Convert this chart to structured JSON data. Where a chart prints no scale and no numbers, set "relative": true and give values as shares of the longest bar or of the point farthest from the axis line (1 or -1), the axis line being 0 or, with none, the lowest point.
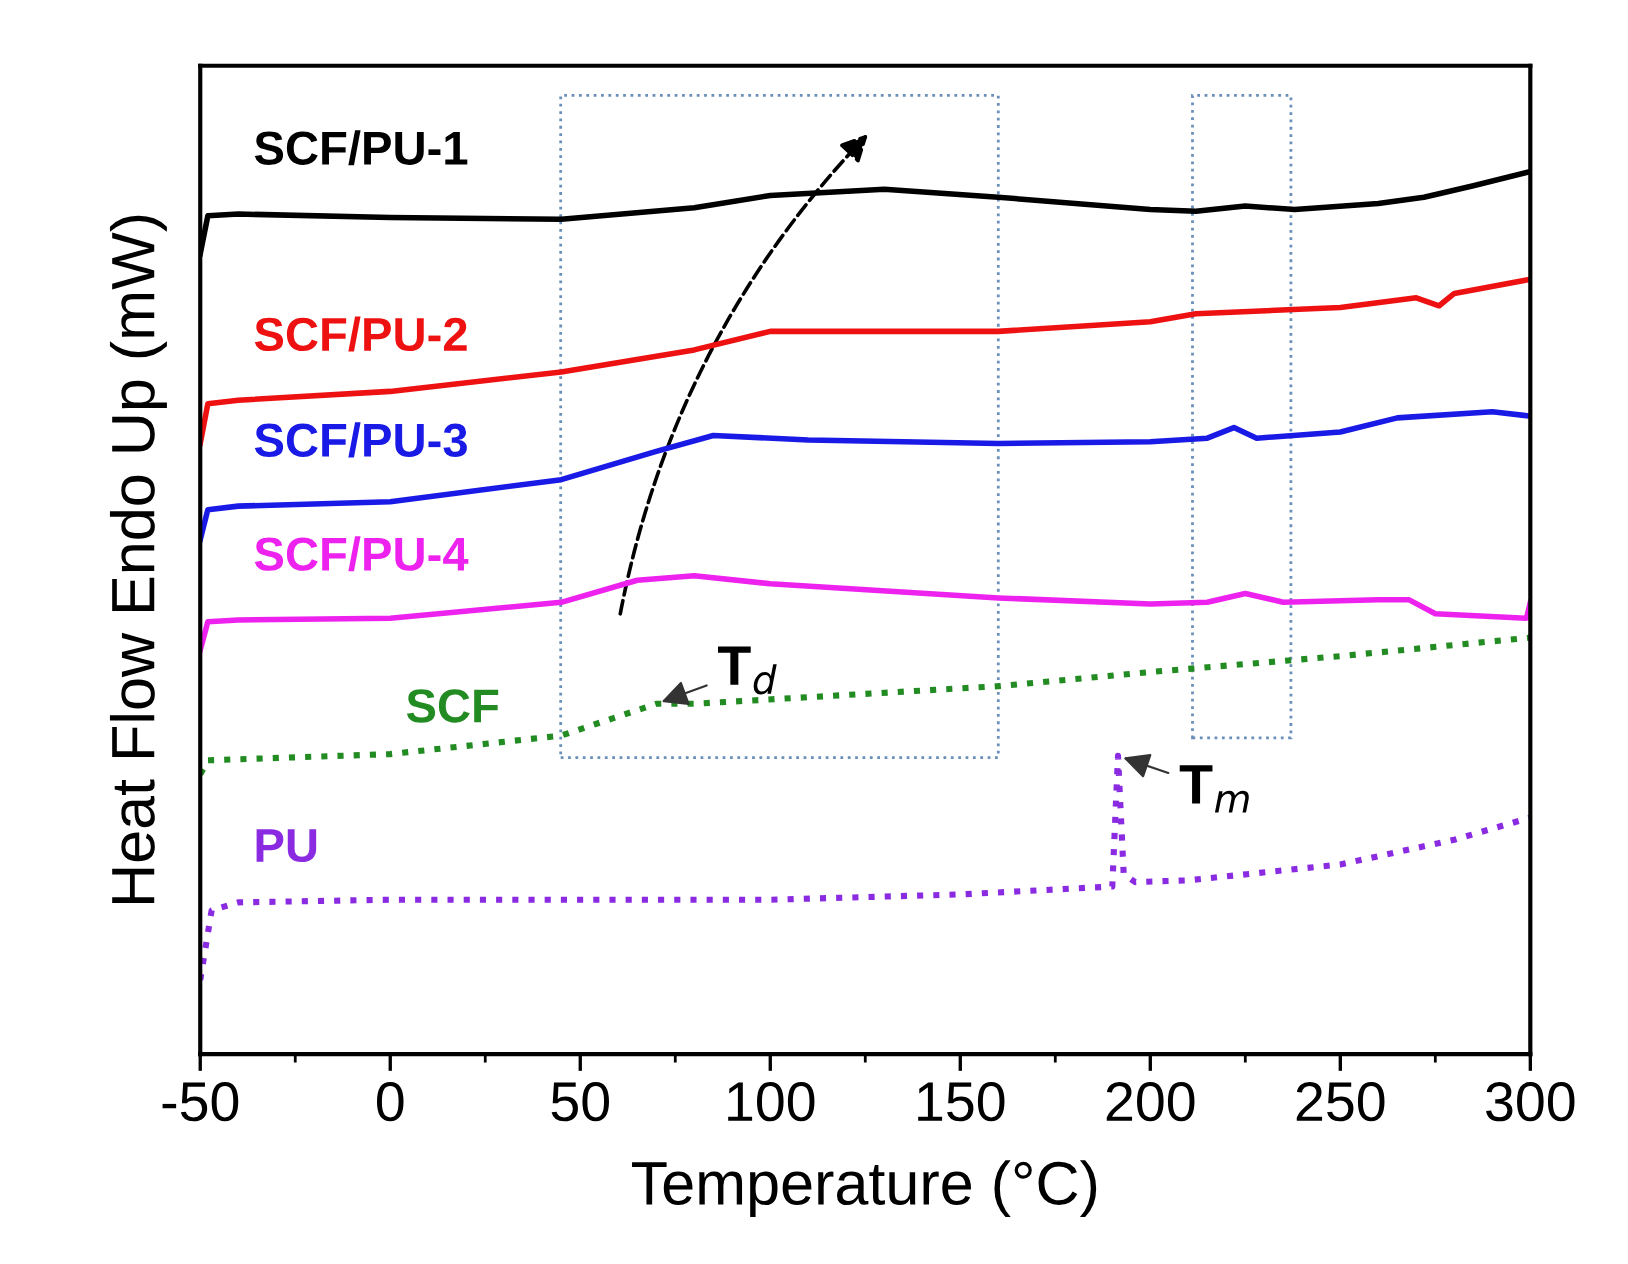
{
  "chart_data": {
    "type": "line",
    "relative": true,
    "xlabel": "Temperature (°C)",
    "ylabel": "Heat Flow Endo Up (mW)",
    "xlim": [
      -50,
      300
    ],
    "xticks": [
      -50,
      0,
      50,
      100,
      150,
      200,
      250,
      300
    ],
    "tick_labels": "x",
    "grid": false,
    "legend": false,
    "marker": "none",
    "series": [
      {
        "name": "SCF/PU-1",
        "color": "#000000",
        "line_style": "solid",
        "x": [
          -50,
          -48,
          -40,
          0,
          45,
          80,
          100,
          130,
          160,
          200,
          212,
          225,
          238,
          260,
          272,
          285,
          300
        ],
        "values": [
          0.907,
          0.95,
          0.952,
          0.948,
          0.946,
          0.959,
          0.973,
          0.98,
          0.971,
          0.957,
          0.955,
          0.961,
          0.957,
          0.964,
          0.971,
          0.984,
          1.0
        ]
      },
      {
        "name": "SCF/PU-2",
        "color": "#ee1111",
        "line_style": "solid",
        "x": [
          -50,
          -48,
          -40,
          0,
          45,
          80,
          100,
          130,
          160,
          200,
          212,
          250,
          270,
          276,
          280,
          300
        ],
        "values": [
          0.692,
          0.737,
          0.741,
          0.751,
          0.773,
          0.798,
          0.819,
          0.819,
          0.819,
          0.83,
          0.839,
          0.846,
          0.857,
          0.848,
          0.862,
          0.878
        ]
      },
      {
        "name": "SCF/PU-3",
        "color": "#1a1ae6",
        "line_style": "solid",
        "x": [
          -50,
          -48,
          -40,
          0,
          45,
          70,
          85,
          110,
          160,
          200,
          215,
          222,
          228,
          250,
          265,
          290,
          300
        ],
        "values": [
          0.583,
          0.617,
          0.621,
          0.626,
          0.651,
          0.683,
          0.701,
          0.696,
          0.692,
          0.694,
          0.698,
          0.71,
          0.698,
          0.705,
          0.721,
          0.728,
          0.723
        ]
      },
      {
        "name": "SCF/PU-4",
        "color": "#ee22ee",
        "line_style": "solid",
        "x": [
          -50,
          -48,
          -40,
          0,
          45,
          65,
          80,
          100,
          160,
          200,
          215,
          225,
          235,
          260,
          268,
          275,
          299,
          300
        ],
        "values": [
          0.458,
          0.49,
          0.492,
          0.494,
          0.512,
          0.537,
          0.542,
          0.533,
          0.517,
          0.51,
          0.512,
          0.522,
          0.512,
          0.515,
          0.515,
          0.499,
          0.494,
          0.512
        ]
      },
      {
        "name": "SCF",
        "color": "#228b22",
        "line_style": "dotted",
        "x": [
          -50,
          -48,
          0,
          45,
          70,
          80,
          160,
          200,
          250,
          300
        ],
        "values": [
          0.317,
          0.333,
          0.34,
          0.361,
          0.397,
          0.397,
          0.417,
          0.433,
          0.451,
          0.472
        ]
      },
      {
        "name": "PU",
        "color": "#8a2be2",
        "line_style": "dotted",
        "x": [
          -50,
          -47,
          -40,
          0,
          100,
          150,
          190,
          191.5,
          193,
          196,
          210,
          250,
          280,
          300
        ],
        "values": [
          0.084,
          0.163,
          0.172,
          0.175,
          0.175,
          0.181,
          0.19,
          0.338,
          0.204,
          0.195,
          0.197,
          0.215,
          0.243,
          0.268
        ]
      }
    ],
    "annotations": [
      {
        "text": "T$_{d}$",
        "x": 70,
        "y": 0.397
      },
      {
        "text": "T$_{m}$",
        "x": 191.5,
        "y": 0.338
      }
    ]
  }
}
